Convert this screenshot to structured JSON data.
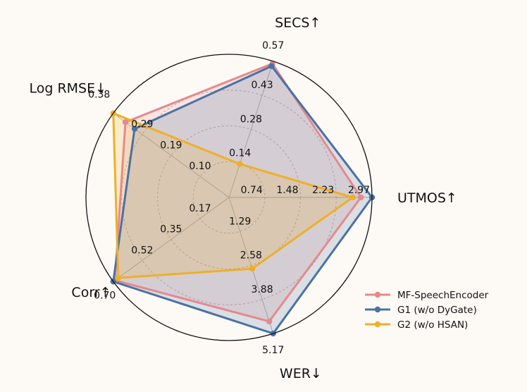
{
  "chart_data": {
    "type": "radar",
    "title": "",
    "axes": [
      {
        "name": "UTMOS↑",
        "max": 2.97,
        "ticks": [
          "0.74",
          "1.48",
          "2.23",
          "2.97"
        ]
      },
      {
        "name": "SECS↑",
        "max": 0.57,
        "ticks": [
          "0.14",
          "0.28",
          "0.43",
          "0.57"
        ]
      },
      {
        "name": "Log RMSE↓",
        "max": 0.38,
        "ticks": [
          "0.10",
          "0.19",
          "0.29",
          "0.38"
        ]
      },
      {
        "name": "Corr↑",
        "max": 0.7,
        "ticks": [
          "0.17",
          "0.35",
          "0.52",
          "0.70"
        ]
      },
      {
        "name": "WER↓",
        "max": 5.17,
        "ticks": [
          "1.29",
          "2.58",
          "3.88",
          "5.17"
        ]
      }
    ],
    "series": [
      {
        "name": "MF-SpeechEncoder",
        "color": "#e58a8e",
        "values": [
          2.74,
          0.56,
          0.34,
          0.69,
          4.71
        ]
      },
      {
        "name": "G1 (w/o DyGate)",
        "color": "#4a72a4",
        "values": [
          2.97,
          0.55,
          0.31,
          0.7,
          5.17
        ]
      },
      {
        "name": "G2 (w/o HSAN)",
        "color": "#ecb02a",
        "values": [
          2.57,
          0.14,
          0.38,
          0.67,
          2.71
        ]
      }
    ],
    "grid": true,
    "legend_position": "bottom-right"
  }
}
